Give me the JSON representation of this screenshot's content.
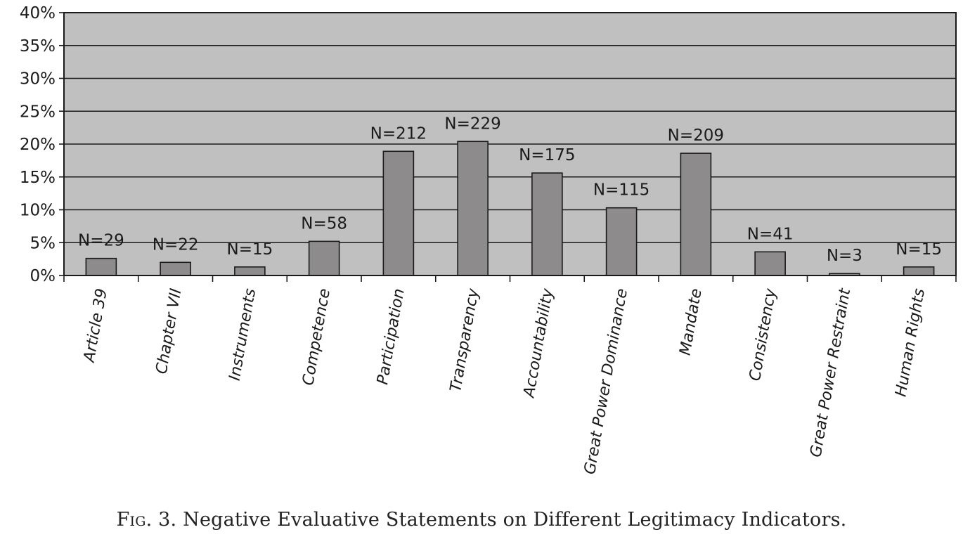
{
  "colors": {
    "plot_background": "#c0c0c0",
    "bar_fill": "#8d8b8c",
    "bar_stroke": "#1a1a1a",
    "gridline": "#1a1a1a"
  },
  "caption": {
    "prefix": "Fig. 3.",
    "text": "Negative Evaluative Statements on Different Legitimacy Indicators."
  },
  "chart_data": {
    "type": "bar",
    "title": "",
    "xlabel": "",
    "ylabel": "",
    "ylim": [
      0,
      40
    ],
    "y_ticks": [
      "0%",
      "5%",
      "10%",
      "15%",
      "20%",
      "25%",
      "30%",
      "35%",
      "40%"
    ],
    "y_tick_values": [
      0,
      5,
      10,
      15,
      20,
      25,
      30,
      35,
      40
    ],
    "grid": true,
    "legend": "none",
    "categories": [
      "Article 39",
      "Chapter VII",
      "Instruments",
      "Competence",
      "Participation",
      "Transparency",
      "Accountability",
      "Great Power Dominance",
      "Mandate",
      "Consistency",
      "Great Power Restraint",
      "Human Rights"
    ],
    "values": [
      2.6,
      2.0,
      1.3,
      5.2,
      18.9,
      20.4,
      15.6,
      10.3,
      18.6,
      3.6,
      0.3,
      1.3
    ],
    "data_labels": [
      "N=29",
      "N=22",
      "N=15",
      "N=58",
      "N=212",
      "N=229",
      "N=175",
      "N=115",
      "N=209",
      "N=41",
      "N=3",
      "N=15"
    ]
  }
}
